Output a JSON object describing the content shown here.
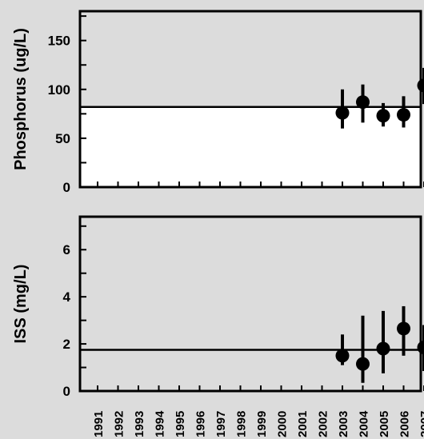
{
  "colors": {
    "background": "#dcdcdc",
    "top_plot_below_line": "#ffffff",
    "marks": "#000000"
  },
  "chart_data": [
    {
      "type": "scatter",
      "title": "",
      "xlabel": "",
      "ylabel": "Phosphorus (ug/L)",
      "x_categories": [
        "1991",
        "1992",
        "1993",
        "1994",
        "1995",
        "1996",
        "1997",
        "1998",
        "1999",
        "2000",
        "2001",
        "2002",
        "2003",
        "2004",
        "2005",
        "2006",
        "2007"
      ],
      "ylim": [
        0,
        180
      ],
      "y_ticks": [
        0,
        50,
        100,
        150
      ],
      "reference_line": 82,
      "fill_below_reference": true,
      "points": [
        {
          "x": "2003",
          "y": 76,
          "low": 60,
          "high": 100
        },
        {
          "x": "2004",
          "y": 87,
          "low": 66,
          "high": 105
        },
        {
          "x": "2005",
          "y": 73,
          "low": 62,
          "high": 86
        },
        {
          "x": "2006",
          "y": 74,
          "low": 61,
          "high": 93
        },
        {
          "x": "2007",
          "y": 104,
          "low": 85,
          "high": 122
        }
      ]
    },
    {
      "type": "scatter",
      "title": "",
      "xlabel": "",
      "ylabel": "ISS (mg/L)",
      "x_categories": [
        "1991",
        "1992",
        "1993",
        "1994",
        "1995",
        "1996",
        "1997",
        "1998",
        "1999",
        "2000",
        "2001",
        "2002",
        "2003",
        "2004",
        "2005",
        "2006",
        "2007"
      ],
      "ylim": [
        0,
        7.4
      ],
      "y_ticks": [
        0,
        2,
        4,
        6
      ],
      "reference_line": 1.75,
      "fill_below_reference": false,
      "points": [
        {
          "x": "2003",
          "y": 1.5,
          "low": 1.1,
          "high": 2.4
        },
        {
          "x": "2004",
          "y": 1.15,
          "low": 0.35,
          "high": 3.2
        },
        {
          "x": "2005",
          "y": 1.8,
          "low": 0.75,
          "high": 3.4
        },
        {
          "x": "2006",
          "y": 2.65,
          "low": 1.5,
          "high": 3.6
        },
        {
          "x": "2007",
          "y": 1.85,
          "low": 0.85,
          "high": 2.8
        }
      ]
    }
  ]
}
